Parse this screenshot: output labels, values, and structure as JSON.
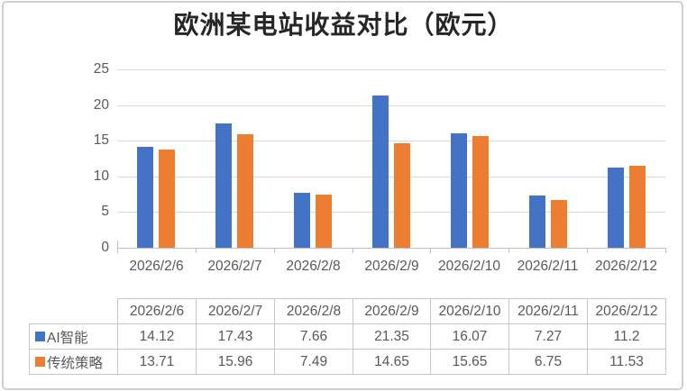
{
  "title": "欧洲某电站收益对比（欧元）",
  "chart_data": {
    "type": "bar",
    "title": "欧洲某电站收益对比（欧元）",
    "categories": [
      "2026/2/6",
      "2026/2/7",
      "2026/2/8",
      "2026/2/9",
      "2026/2/10",
      "2026/2/11",
      "2026/2/12"
    ],
    "series": [
      {
        "name": "AI智能",
        "color": "#4472C4",
        "values": [
          14.12,
          17.43,
          7.66,
          21.35,
          16.07,
          7.27,
          11.2
        ]
      },
      {
        "name": "传统策略",
        "color": "#ED7D31",
        "values": [
          13.71,
          15.96,
          7.49,
          14.65,
          15.65,
          6.75,
          11.53
        ]
      }
    ],
    "xlabel": "",
    "ylabel": "",
    "ylim": [
      0,
      25
    ],
    "yticks": [
      0,
      5,
      10,
      15,
      20,
      25
    ],
    "grid": true,
    "legend_position": "data-table-left"
  },
  "colors": {
    "series_ai": "#4472C4",
    "series_traditional": "#ED7D31",
    "gridline": "#d9d9d9",
    "axis": "#bfbfbf",
    "tick_text": "#595959",
    "title_text": "#262626",
    "table_border": "#c6c6c6",
    "frame_border": "#cfcfcf",
    "background": "#ffffff"
  }
}
